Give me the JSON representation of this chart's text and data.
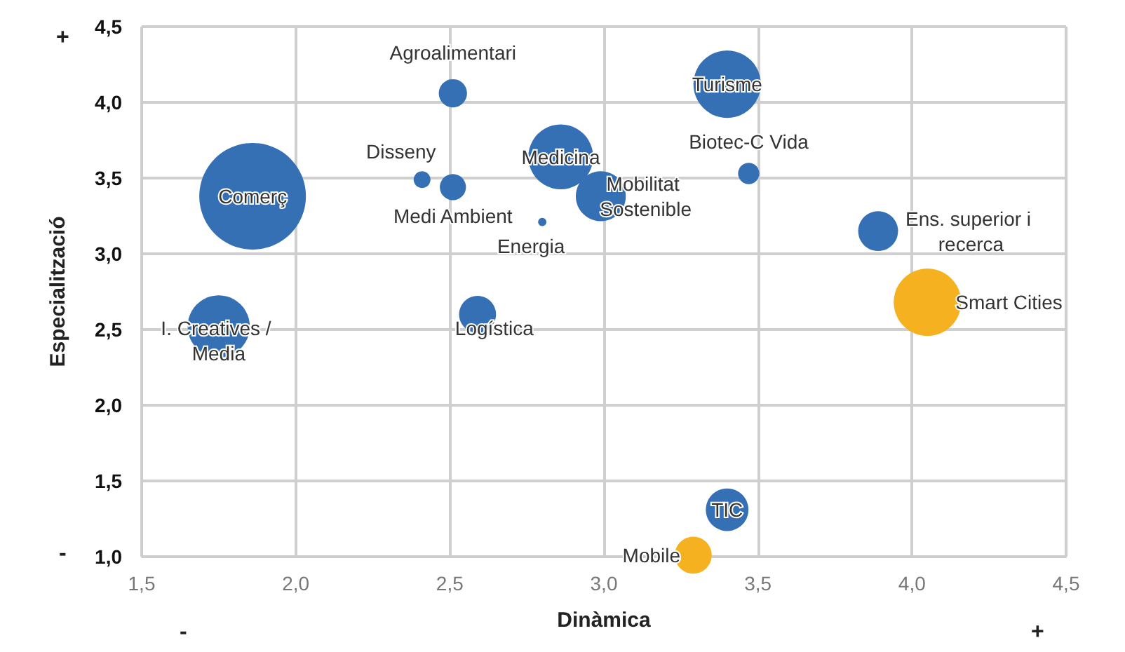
{
  "chart_data": {
    "type": "bubble",
    "xlabel": "Dinàmica",
    "ylabel": "Especialització",
    "xlim": [
      1.5,
      4.5
    ],
    "ylim": [
      1,
      4.5
    ],
    "xticks": [
      {
        "value": 1.5,
        "label": "1,5"
      },
      {
        "value": 2,
        "label": "2,0"
      },
      {
        "value": 2.5,
        "label": "2,5"
      },
      {
        "value": 3,
        "label": "3,0"
      },
      {
        "value": 3.5,
        "label": "3,5"
      },
      {
        "value": 4,
        "label": "4,0"
      },
      {
        "value": 4.5,
        "label": "4,5"
      }
    ],
    "yticks": [
      {
        "value": 1,
        "label": "1,0"
      },
      {
        "value": 1.5,
        "label": "1,5"
      },
      {
        "value": 2,
        "label": "2,0"
      },
      {
        "value": 2.5,
        "label": "2,5"
      },
      {
        "value": 3,
        "label": "3,0"
      },
      {
        "value": 3.5,
        "label": "3,5"
      },
      {
        "value": 4,
        "label": "4,0"
      },
      {
        "value": 4.5,
        "label": "4,5"
      }
    ],
    "grid": true,
    "legend": false,
    "marker": "circle",
    "annotations": [
      "-",
      "+",
      "+",
      "-"
    ],
    "series": [
      {
        "name": "Comerç",
        "color": "#3570b5",
        "x": [
          1.86
        ],
        "values": [
          3.38
        ],
        "sizes": [
          1
        ]
      },
      {
        "name": "I. Creatives / Media",
        "color": "#3570b5",
        "x": [
          1.75
        ],
        "values": [
          2.52
        ],
        "sizes": [
          0.34
        ]
      },
      {
        "name": "Agroalimentari",
        "color": "#3570b5",
        "x": [
          2.51
        ],
        "values": [
          4.06
        ],
        "sizes": [
          0.07
        ]
      },
      {
        "name": "Disseny",
        "color": "#3570b5",
        "x": [
          2.41
        ],
        "values": [
          3.49
        ],
        "sizes": [
          0.025
        ]
      },
      {
        "name": "Medi Ambient",
        "color": "#3570b5",
        "x": [
          2.51
        ],
        "values": [
          3.44
        ],
        "sizes": [
          0.06
        ]
      },
      {
        "name": "Energia",
        "color": "#3570b5",
        "x": [
          2.8
        ],
        "values": [
          3.21
        ],
        "sizes": [
          0.006
        ]
      },
      {
        "name": "Medicina",
        "color": "#3570b5",
        "x": [
          2.86
        ],
        "values": [
          3.64
        ],
        "sizes": [
          0.37
        ]
      },
      {
        "name": "Mobilitat Sostenible",
        "color": "#3570b5",
        "x": [
          2.99
        ],
        "values": [
          3.38
        ],
        "sizes": [
          0.22
        ]
      },
      {
        "name": "Turisme",
        "color": "#3570b5",
        "x": [
          3.4
        ],
        "values": [
          4.12
        ],
        "sizes": [
          0.4
        ]
      },
      {
        "name": "Biotec-C Vida",
        "color": "#3570b5",
        "x": [
          3.47
        ],
        "values": [
          3.53
        ],
        "sizes": [
          0.04
        ]
      },
      {
        "name": "Ens. superior i recerca",
        "color": "#3570b5",
        "x": [
          3.89
        ],
        "values": [
          3.15
        ],
        "sizes": [
          0.14
        ]
      },
      {
        "name": "Smart Cities",
        "color": "#f5b120",
        "x": [
          4.05
        ],
        "values": [
          2.68
        ],
        "sizes": [
          0.4
        ]
      },
      {
        "name": "Logística",
        "color": "#3570b5",
        "x": [
          2.59
        ],
        "values": [
          2.6
        ],
        "sizes": [
          0.12
        ]
      },
      {
        "name": "TIC",
        "color": "#3570b5",
        "x": [
          3.4
        ],
        "values": [
          1.31
        ],
        "sizes": [
          0.16
        ]
      },
      {
        "name": "Mobile",
        "color": "#f5b120",
        "x": [
          3.29
        ],
        "values": [
          1.01
        ],
        "sizes": [
          0.12
        ]
      }
    ]
  }
}
